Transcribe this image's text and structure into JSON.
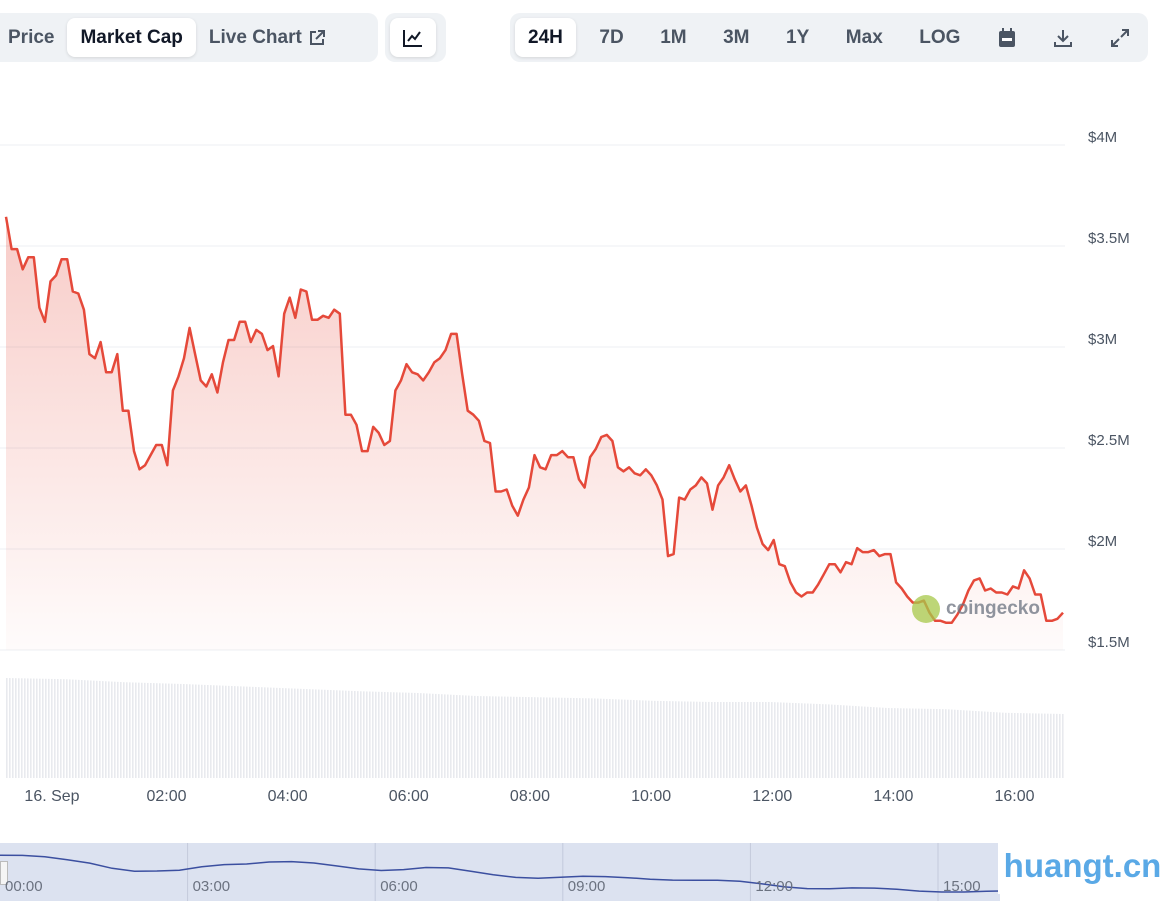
{
  "tabs": {
    "price": "Price",
    "market_cap": "Market Cap",
    "live_chart": "Live Chart"
  },
  "ranges": [
    "24H",
    "7D",
    "1M",
    "3M",
    "1Y",
    "Max",
    "LOG"
  ],
  "icons": {
    "external": "external-link-icon",
    "chart_type": "line-chart-icon",
    "calendar": "calendar-icon",
    "download": "download-icon",
    "expand": "expand-icon"
  },
  "colors": {
    "line": "#e5493a",
    "accent_bg": "#eff2f5",
    "navigator_line": "#3b4fa0"
  },
  "watermark_chart": "coingecko",
  "watermark_site": "huangt.cn",
  "chart_data": {
    "type": "line",
    "title": "Market Cap",
    "y_ticks": [
      "$4M",
      "$3.5M",
      "$3M",
      "$2.5M",
      "$2M",
      "$1.5M"
    ],
    "y_tick_values": [
      4,
      3.5,
      3,
      2.5,
      2,
      1.5
    ],
    "ylim": [
      1.5,
      4
    ],
    "y_unit": "$M",
    "x_ticks": [
      "16. Sep",
      "02:00",
      "04:00",
      "06:00",
      "08:00",
      "10:00",
      "12:00",
      "14:00",
      "16:00"
    ],
    "x_tick_hours": [
      0,
      2,
      4,
      6,
      8,
      10,
      12,
      14,
      16
    ],
    "x_range_hours": [
      -0.65,
      16.8
    ],
    "values": [
      3.61,
      3.45,
      3.45,
      3.35,
      3.41,
      3.41,
      3.16,
      3.09,
      3.29,
      3.32,
      3.4,
      3.4,
      3.24,
      3.23,
      3.15,
      2.93,
      2.91,
      2.99,
      2.84,
      2.84,
      2.93,
      2.65,
      2.65,
      2.45,
      2.36,
      2.38,
      2.43,
      2.48,
      2.48,
      2.38,
      2.75,
      2.82,
      2.91,
      3.06,
      2.93,
      2.8,
      2.77,
      2.83,
      2.74,
      2.89,
      3.0,
      3.0,
      3.09,
      3.09,
      2.99,
      3.05,
      3.03,
      2.95,
      2.97,
      2.82,
      3.13,
      3.21,
      3.11,
      3.25,
      3.24,
      3.1,
      3.1,
      3.12,
      3.11,
      3.15,
      3.13,
      2.63,
      2.63,
      2.58,
      2.45,
      2.45,
      2.57,
      2.54,
      2.48,
      2.5,
      2.75,
      2.8,
      2.88,
      2.84,
      2.83,
      2.8,
      2.84,
      2.89,
      2.91,
      2.95,
      3.03,
      3.03,
      2.83,
      2.65,
      2.63,
      2.6,
      2.5,
      2.49,
      2.25,
      2.25,
      2.26,
      2.18,
      2.13,
      2.21,
      2.27,
      2.43,
      2.37,
      2.36,
      2.43,
      2.43,
      2.45,
      2.42,
      2.42,
      2.31,
      2.27,
      2.42,
      2.46,
      2.52,
      2.53,
      2.5,
      2.37,
      2.35,
      2.37,
      2.34,
      2.33,
      2.36,
      2.33,
      2.28,
      2.21,
      1.93,
      1.94,
      2.22,
      2.21,
      2.26,
      2.28,
      2.32,
      2.29,
      2.16,
      2.28,
      2.32,
      2.38,
      2.31,
      2.25,
      2.28,
      2.18,
      2.07,
      1.99,
      1.96,
      2.01,
      1.89,
      1.88,
      1.8,
      1.75,
      1.73,
      1.75,
      1.75,
      1.79,
      1.84,
      1.89,
      1.89,
      1.85,
      1.9,
      1.89,
      1.97,
      1.95,
      1.95,
      1.96,
      1.93,
      1.94,
      1.94,
      1.8,
      1.77,
      1.73,
      1.7,
      1.7,
      1.71,
      1.65,
      1.61,
      1.61,
      1.6,
      1.6,
      1.64,
      1.69,
      1.76,
      1.81,
      1.82,
      1.76,
      1.77,
      1.75,
      1.75,
      1.74,
      1.78,
      1.77,
      1.86,
      1.82,
      1.74,
      1.74,
      1.61,
      1.61,
      1.62,
      1.65
    ],
    "volume_relative": [
      1.0,
      0.98,
      0.93,
      0.9,
      0.86,
      0.82,
      0.78,
      0.75,
      0.7,
      0.68,
      0.66,
      0.62,
      0.6,
      0.6,
      0.56,
      0.5,
      0.48,
      0.42,
      0.4
    ],
    "navigator": {
      "x_ticks": [
        "00:00",
        "03:00",
        "06:00",
        "09:00",
        "12:00",
        "15:00"
      ]
    }
  }
}
